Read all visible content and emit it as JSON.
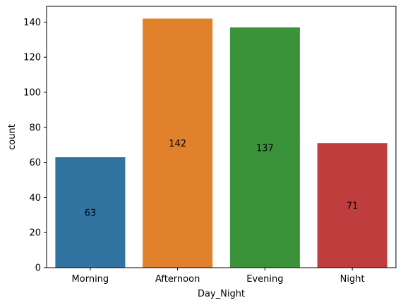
{
  "chart_data": {
    "type": "bar",
    "title": "",
    "xlabel": "Day_Night",
    "ylabel": "count",
    "categories": [
      "Morning",
      "Afternoon",
      "Evening",
      "Night"
    ],
    "values": [
      63,
      142,
      137,
      71
    ],
    "data_labels": [
      "63",
      "142",
      "137",
      "71"
    ],
    "colors": [
      "#3274a1",
      "#e1812c",
      "#3a923a",
      "#c03d3e"
    ],
    "ylim": [
      0,
      149
    ],
    "yticks": [
      0,
      20,
      40,
      60,
      80,
      100,
      120,
      140
    ],
    "grid": false,
    "legend": "none"
  }
}
